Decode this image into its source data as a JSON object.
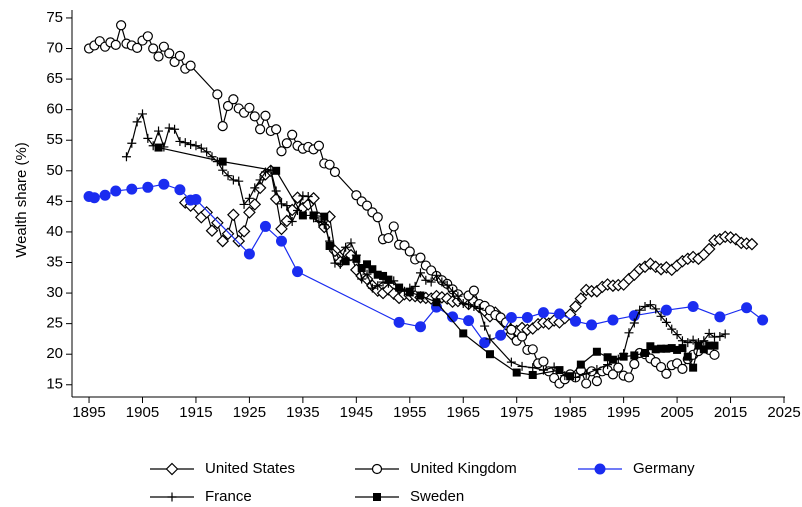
{
  "chart_data": {
    "type": "line",
    "y_label": "Wealth share (%)",
    "xlim": [
      1892,
      2025
    ],
    "ylim": [
      13,
      76.3
    ],
    "xticks": [
      1895,
      1905,
      1915,
      1925,
      1935,
      1945,
      1955,
      1965,
      1975,
      1985,
      1995,
      2005,
      2015,
      2025
    ],
    "yticks": [
      15,
      20,
      25,
      30,
      35,
      40,
      45,
      50,
      55,
      60,
      65,
      70,
      75
    ],
    "series": [
      {
        "name": "United States",
        "color": "#000000",
        "marker": "diamond",
        "x": [
          1913,
          1914,
          1916,
          1917,
          1918,
          1919,
          1920,
          1921,
          1922,
          1923,
          1924,
          1925,
          1926,
          1927,
          1928,
          1929,
          1930,
          1931,
          1932,
          1933,
          1934,
          1935,
          1936,
          1937,
          1938,
          1939,
          1940,
          1941,
          1942,
          1943,
          1944,
          1945,
          1946,
          1947,
          1948,
          1949,
          1950,
          1951,
          1952,
          1953,
          1954,
          1955,
          1956,
          1957,
          1958,
          1959,
          1960,
          1961,
          1962,
          1963,
          1964,
          1965,
          1966,
          1967,
          1968,
          1969,
          1970,
          1971,
          1972,
          1973,
          1974,
          1975,
          1976,
          1977,
          1978,
          1979,
          1980,
          1981,
          1982,
          1983,
          1984,
          1985,
          1986,
          1987,
          1988,
          1989,
          1990,
          1991,
          1992,
          1993,
          1994,
          1995,
          1996,
          1997,
          1998,
          1999,
          2000,
          2001,
          2002,
          2003,
          2004,
          2005,
          2006,
          2007,
          2008,
          2009,
          2010,
          2011,
          2012,
          2013,
          2014,
          2015,
          2016,
          2017,
          2018,
          2019
        ],
        "values": [
          44.8,
          44.3,
          42.4,
          43.2,
          40.2,
          41.5,
          38.5,
          39.7,
          42.8,
          38.5,
          40.1,
          43.2,
          44.5,
          47.2,
          49.4,
          50.0,
          45.4,
          40.5,
          41.8,
          43.6,
          45.6,
          43.9,
          44.5,
          45.5,
          42.3,
          40.8,
          42.5,
          36.9,
          35.1,
          36.7,
          36.2,
          33.8,
          32.8,
          32.3,
          31.2,
          30.4,
          30.0,
          30.6,
          29.9,
          29.2,
          29.8,
          29.6,
          29.5,
          29.3,
          29.2,
          29.1,
          29.5,
          29.3,
          29.1,
          28.6,
          28.7,
          28.9,
          28.2,
          28.6,
          27.7,
          27.1,
          26.2,
          26.8,
          25.8,
          24.9,
          23.3,
          23.8,
          24.3,
          24.0,
          24.2,
          24.9,
          25.2,
          25.0,
          25.5,
          25.2,
          25.9,
          26.5,
          27.8,
          29.1,
          30.5,
          30.3,
          30.3,
          31.0,
          31.4,
          31.2,
          31.3,
          31.4,
          32.3,
          33.0,
          33.9,
          34.3,
          34.8,
          34.3,
          33.9,
          34.2,
          33.8,
          34.5,
          35.2,
          35.6,
          35.9,
          35.6,
          36.3,
          37.2,
          38.6,
          38.8,
          39.2,
          39.1,
          38.8,
          38.2,
          38.1,
          38.0
        ]
      },
      {
        "name": "United Kingdom",
        "color": "#000000",
        "marker": "circle-open",
        "x": [
          1895,
          1896,
          1897,
          1898,
          1899,
          1900,
          1901,
          1902,
          1903,
          1904,
          1905,
          1906,
          1907,
          1908,
          1909,
          1910,
          1911,
          1912,
          1913,
          1914,
          1919,
          1920,
          1921,
          1922,
          1923,
          1924,
          1925,
          1926,
          1927,
          1928,
          1929,
          1930,
          1931,
          1932,
          1933,
          1934,
          1935,
          1936,
          1937,
          1938,
          1939,
          1940,
          1941,
          1945,
          1946,
          1947,
          1948,
          1949,
          1950,
          1951,
          1952,
          1953,
          1954,
          1955,
          1956,
          1957,
          1958,
          1959,
          1960,
          1961,
          1962,
          1963,
          1964,
          1965,
          1966,
          1967,
          1968,
          1969,
          1970,
          1971,
          1972,
          1973,
          1974,
          1975,
          1976,
          1977,
          1978,
          1979,
          1980,
          1981,
          1982,
          1983,
          1984,
          1985,
          1986,
          1987,
          1988,
          1989,
          1990,
          1991,
          1992,
          1993,
          1994,
          1995,
          1996,
          1997,
          1998,
          1999,
          2000,
          2001,
          2002,
          2003,
          2004,
          2005,
          2006,
          2007,
          2008,
          2009,
          2010,
          2011,
          2012
        ],
        "values": [
          70.0,
          70.5,
          71.2,
          70.3,
          71.0,
          70.6,
          73.8,
          70.8,
          70.5,
          70.1,
          71.3,
          72.0,
          70.0,
          68.7,
          70.3,
          69.2,
          67.8,
          68.8,
          66.7,
          67.2,
          62.5,
          57.3,
          60.6,
          61.7,
          60.2,
          59.5,
          60.3,
          58.9,
          56.8,
          59.0,
          56.5,
          56.8,
          53.2,
          54.5,
          55.9,
          54.1,
          53.6,
          53.9,
          53.5,
          54.1,
          51.2,
          51.0,
          49.8,
          46.0,
          45.0,
          44.3,
          43.2,
          42.4,
          38.8,
          39.0,
          40.9,
          37.9,
          37.8,
          36.8,
          35.5,
          35.8,
          34.5,
          33.7,
          32.8,
          32.1,
          31.5,
          30.6,
          29.8,
          29.1,
          29.6,
          30.4,
          28.2,
          27.9,
          27.2,
          26.4,
          26.0,
          25.2,
          24.0,
          22.2,
          22.9,
          20.7,
          20.8,
          18.5,
          18.8,
          17.2,
          16.1,
          15.2,
          15.9,
          16.7,
          16.2,
          17.4,
          15.2,
          17.2,
          15.6,
          17.2,
          17.4,
          16.7,
          17.8,
          16.5,
          16.2,
          18.4,
          20.2,
          20.0,
          19.3,
          18.7,
          17.9,
          16.8,
          18.2,
          18.5,
          17.6,
          19.2,
          19.9,
          20.5,
          21.4,
          20.7,
          19.9
        ]
      },
      {
        "name": "Germany",
        "color": "#1a2cf0",
        "marker": "circle",
        "x": [
          1895,
          1896,
          1898,
          1900,
          1903,
          1906,
          1909,
          1912,
          1914,
          1915,
          1925,
          1928,
          1931,
          1934,
          1953,
          1957,
          1960,
          1963,
          1966,
          1969,
          1972,
          1974,
          1977,
          1980,
          1983,
          1986,
          1989,
          1993,
          1997,
          2003,
          2008,
          2013,
          2018,
          2021
        ],
        "values": [
          45.8,
          45.6,
          46.0,
          46.7,
          47.0,
          47.3,
          47.8,
          46.9,
          45.2,
          45.3,
          36.4,
          40.9,
          38.5,
          33.5,
          25.2,
          24.5,
          27.7,
          26.1,
          25.5,
          21.9,
          23.1,
          26.0,
          26.0,
          26.8,
          26.6,
          25.4,
          24.8,
          25.6,
          26.3,
          27.2,
          27.8,
          26.1,
          27.6,
          25.6
        ]
      },
      {
        "name": "France",
        "color": "#000000",
        "marker": "plus",
        "x": [
          1902,
          1903,
          1904,
          1905,
          1906,
          1907,
          1908,
          1909,
          1910,
          1911,
          1912,
          1913,
          1914,
          1915,
          1916,
          1917,
          1918,
          1919,
          1920,
          1921,
          1922,
          1923,
          1924,
          1925,
          1926,
          1927,
          1928,
          1929,
          1930,
          1931,
          1932,
          1933,
          1934,
          1935,
          1936,
          1937,
          1938,
          1939,
          1940,
          1941,
          1942,
          1943,
          1944,
          1945,
          1946,
          1947,
          1948,
          1949,
          1950,
          1951,
          1952,
          1953,
          1954,
          1955,
          1956,
          1957,
          1958,
          1959,
          1960,
          1961,
          1962,
          1963,
          1964,
          1965,
          1966,
          1967,
          1968,
          1969,
          1970,
          1974,
          1976,
          1978,
          1980,
          1982,
          1984,
          1986,
          1988,
          1990,
          1992,
          1994,
          1995,
          1996,
          1997,
          1998,
          1999,
          2000,
          2001,
          2002,
          2003,
          2004,
          2005,
          2006,
          2007,
          2008,
          2009,
          2010,
          2011,
          2012,
          2013,
          2014
        ],
        "values": [
          52.3,
          54.5,
          58.0,
          59.3,
          55.3,
          54.1,
          56.5,
          53.9,
          57.0,
          56.8,
          54.8,
          54.6,
          54.3,
          54.1,
          53.7,
          53.1,
          52.3,
          51.5,
          50.1,
          49.2,
          48.5,
          48.3,
          44.5,
          45.5,
          47.2,
          48.5,
          49.8,
          50.1,
          46.7,
          44.6,
          44.3,
          41.7,
          43.5,
          45.9,
          45.8,
          42.3,
          41.7,
          41.2,
          38.5,
          34.9,
          34.7,
          37.5,
          38.2,
          36.2,
          32.3,
          33.1,
          30.8,
          31.2,
          31.8,
          31.6,
          32.0,
          30.7,
          30.3,
          30.8,
          31.1,
          33.3,
          32.1,
          31.8,
          32.9,
          31.8,
          31.3,
          30.3,
          29.5,
          28.3,
          28.1,
          27.8,
          27.5,
          24.6,
          22.5,
          18.7,
          18.0,
          17.8,
          17.4,
          17.9,
          16.5,
          16.2,
          16.8,
          17.5,
          18.3,
          19.2,
          20.1,
          23.5,
          25.1,
          27.2,
          27.8,
          28.1,
          27.4,
          26.2,
          25.2,
          24.1,
          23.2,
          22.2,
          21.9,
          22.3,
          21.9,
          22.2,
          23.4,
          22.8,
          22.9,
          23.3
        ]
      },
      {
        "name": "Sweden",
        "color": "#000000",
        "marker": "square",
        "x": [
          1908,
          1920,
          1930,
          1935,
          1937,
          1939,
          1940,
          1943,
          1945,
          1946,
          1947,
          1948,
          1949,
          1950,
          1951,
          1953,
          1955,
          1957,
          1960,
          1965,
          1970,
          1975,
          1978,
          1983,
          1985,
          1987,
          1990,
          1992,
          1993,
          1995,
          1997,
          1999,
          2000,
          2001,
          2002,
          2003,
          2004,
          2005,
          2006,
          2007,
          2008,
          2009,
          2010,
          2011,
          2012
        ],
        "values": [
          53.8,
          51.5,
          50.0,
          42.7,
          42.7,
          42.5,
          37.7,
          35.2,
          35.6,
          34.1,
          34.7,
          33.9,
          33.0,
          32.8,
          32.2,
          30.9,
          30.1,
          29.6,
          28.5,
          23.4,
          20.0,
          17.0,
          16.6,
          17.4,
          16.4,
          18.3,
          20.4,
          19.5,
          19.1,
          19.6,
          19.8,
          20.2,
          21.3,
          20.8,
          20.9,
          20.9,
          21.0,
          20.7,
          21.0,
          19.6,
          17.8,
          21.4,
          20.8,
          21.4,
          21.4
        ]
      }
    ]
  }
}
